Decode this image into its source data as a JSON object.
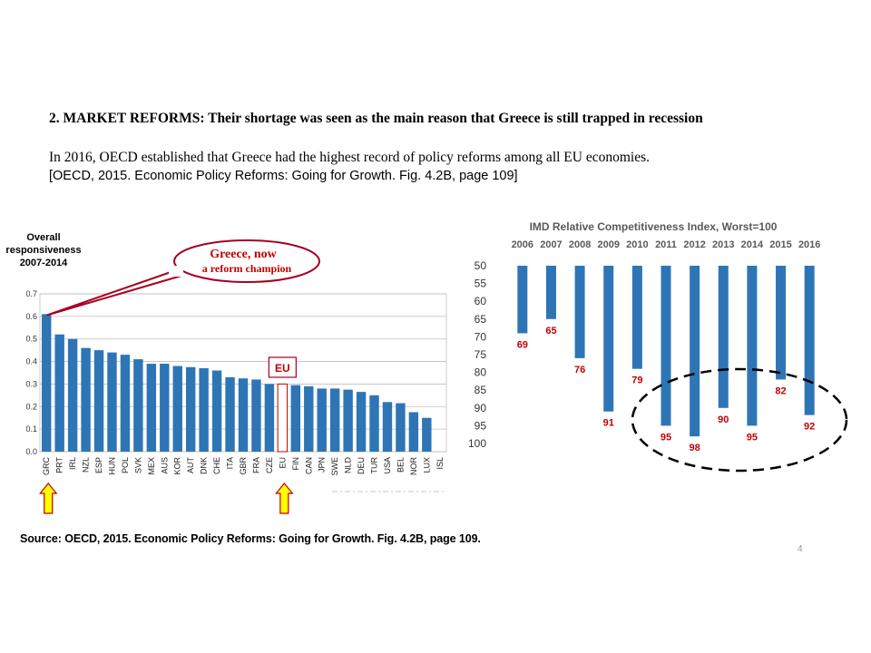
{
  "slide": {
    "heading": "2. MARKET REFORMS: Their shortage was seen as the main reason that Greece is still trapped in recession",
    "statement": "In 2016, OECD established that Greece had the highest record of policy reforms among all EU economies.",
    "reference": "[OECD, 2015. Economic Policy Reforms: Going for Growth. Fig. 4.2B, page 109]",
    "source": "Source: OECD, 2015. Economic Policy Reforms: Going for Growth. Fig. 4.2B, page 109.",
    "page_number": "4"
  },
  "colors": {
    "bar": "#2e75b6",
    "bar_highlight_outline": "#c00000",
    "arrow_fill": "#ffff00",
    "arrow_stroke": "#c00000",
    "callout_stroke": "#a50021",
    "callout_text": "#c00000",
    "value_label": "#c00000"
  },
  "chart_data": [
    {
      "type": "bar",
      "ylabel": "Overall responsiveness 2007-2014",
      "ylim": [
        0,
        0.7
      ],
      "yticks": [
        "0.0",
        "0.1",
        "0.2",
        "0.3",
        "0.4",
        "0.5",
        "0.6",
        "0.7"
      ],
      "grid": true,
      "categories": [
        "GRC",
        "PRT",
        "IRL",
        "NZL",
        "ESP",
        "HUN",
        "POL",
        "SVK",
        "MEX",
        "AUS",
        "KOR",
        "AUT",
        "DNK",
        "CHE",
        "ITA",
        "GBR",
        "FRA",
        "CZE",
        "EU",
        "FIN",
        "CAN",
        "JPN",
        "SWE",
        "NLD",
        "DEU",
        "TUR",
        "USA",
        "BEL",
        "NOR",
        "LUX",
        "ISL"
      ],
      "values": [
        0.61,
        0.52,
        0.5,
        0.46,
        0.45,
        0.44,
        0.43,
        0.41,
        0.39,
        0.39,
        0.38,
        0.375,
        0.37,
        0.36,
        0.33,
        0.325,
        0.32,
        0.3,
        0.3,
        0.295,
        0.29,
        0.28,
        0.28,
        0.275,
        0.265,
        0.25,
        0.22,
        0.215,
        0.175,
        0.15,
        0.0
      ],
      "highlighted_category": "EU",
      "annotations": [
        {
          "text_line1": "Greece,  now",
          "text_line2": "a reform champion",
          "target": "GRC"
        },
        {
          "text": "EU",
          "target": "EU"
        }
      ],
      "arrows_under": [
        "GRC",
        "EU"
      ]
    },
    {
      "type": "bar",
      "title": "IMD Relative Competitiveness  Index, Worst=100",
      "categories": [
        "2006",
        "2007",
        "2008",
        "2009",
        "2010",
        "2011",
        "2012",
        "2013",
        "2014",
        "2015",
        "2016"
      ],
      "values": [
        69,
        65,
        76,
        91,
        79,
        95,
        98,
        90,
        95,
        82,
        92
      ],
      "data_labels": [
        "69",
        "65",
        "76",
        "91",
        "79",
        "95",
        "98",
        "90",
        "95",
        "82",
        "92"
      ],
      "ylim": [
        50,
        100
      ],
      "yticks": [
        "50",
        "55",
        "60",
        "65",
        "70",
        "75",
        "80",
        "85",
        "90",
        "95",
        "100"
      ],
      "y_inverted": true,
      "ellipse_around": [
        "2011",
        "2012",
        "2013",
        "2014",
        "2015",
        "2016"
      ]
    }
  ]
}
